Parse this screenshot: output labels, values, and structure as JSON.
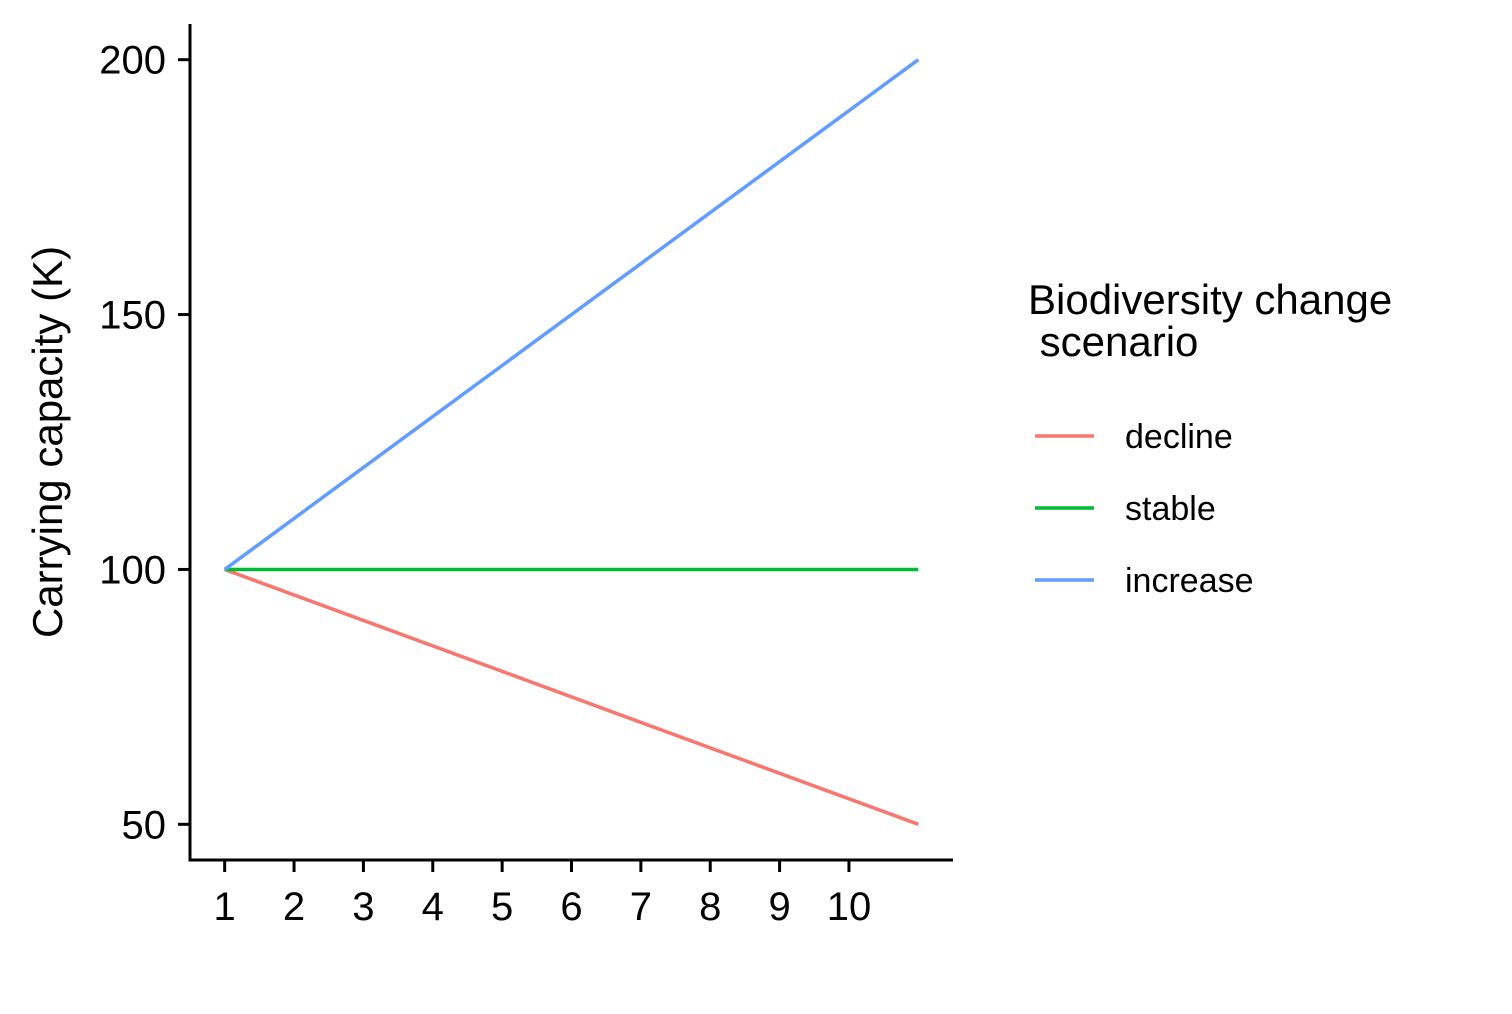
{
  "chart_data": {
    "type": "line",
    "title": "",
    "xlabel": "",
    "ylabel": "Carrying capacity (K)",
    "x": [
      1,
      11
    ],
    "x_ticks": [
      "1",
      "2",
      "3",
      "4",
      "5",
      "6",
      "7",
      "8",
      "9",
      "10"
    ],
    "y_ticks": [
      "50",
      "100",
      "150",
      "200"
    ],
    "xlim": [
      0.5,
      11.5
    ],
    "ylim": [
      43,
      207
    ],
    "grid": false,
    "legend": {
      "title_lines": [
        "Biodiversity change",
        " scenario"
      ],
      "placement": "right"
    },
    "series": [
      {
        "name": "decline",
        "color": "#F8766D",
        "values": [
          100,
          50
        ]
      },
      {
        "name": "stable",
        "color": "#00BA38",
        "values": [
          100,
          100
        ]
      },
      {
        "name": "increase",
        "color": "#619CFF",
        "values": [
          100,
          200
        ]
      }
    ]
  }
}
